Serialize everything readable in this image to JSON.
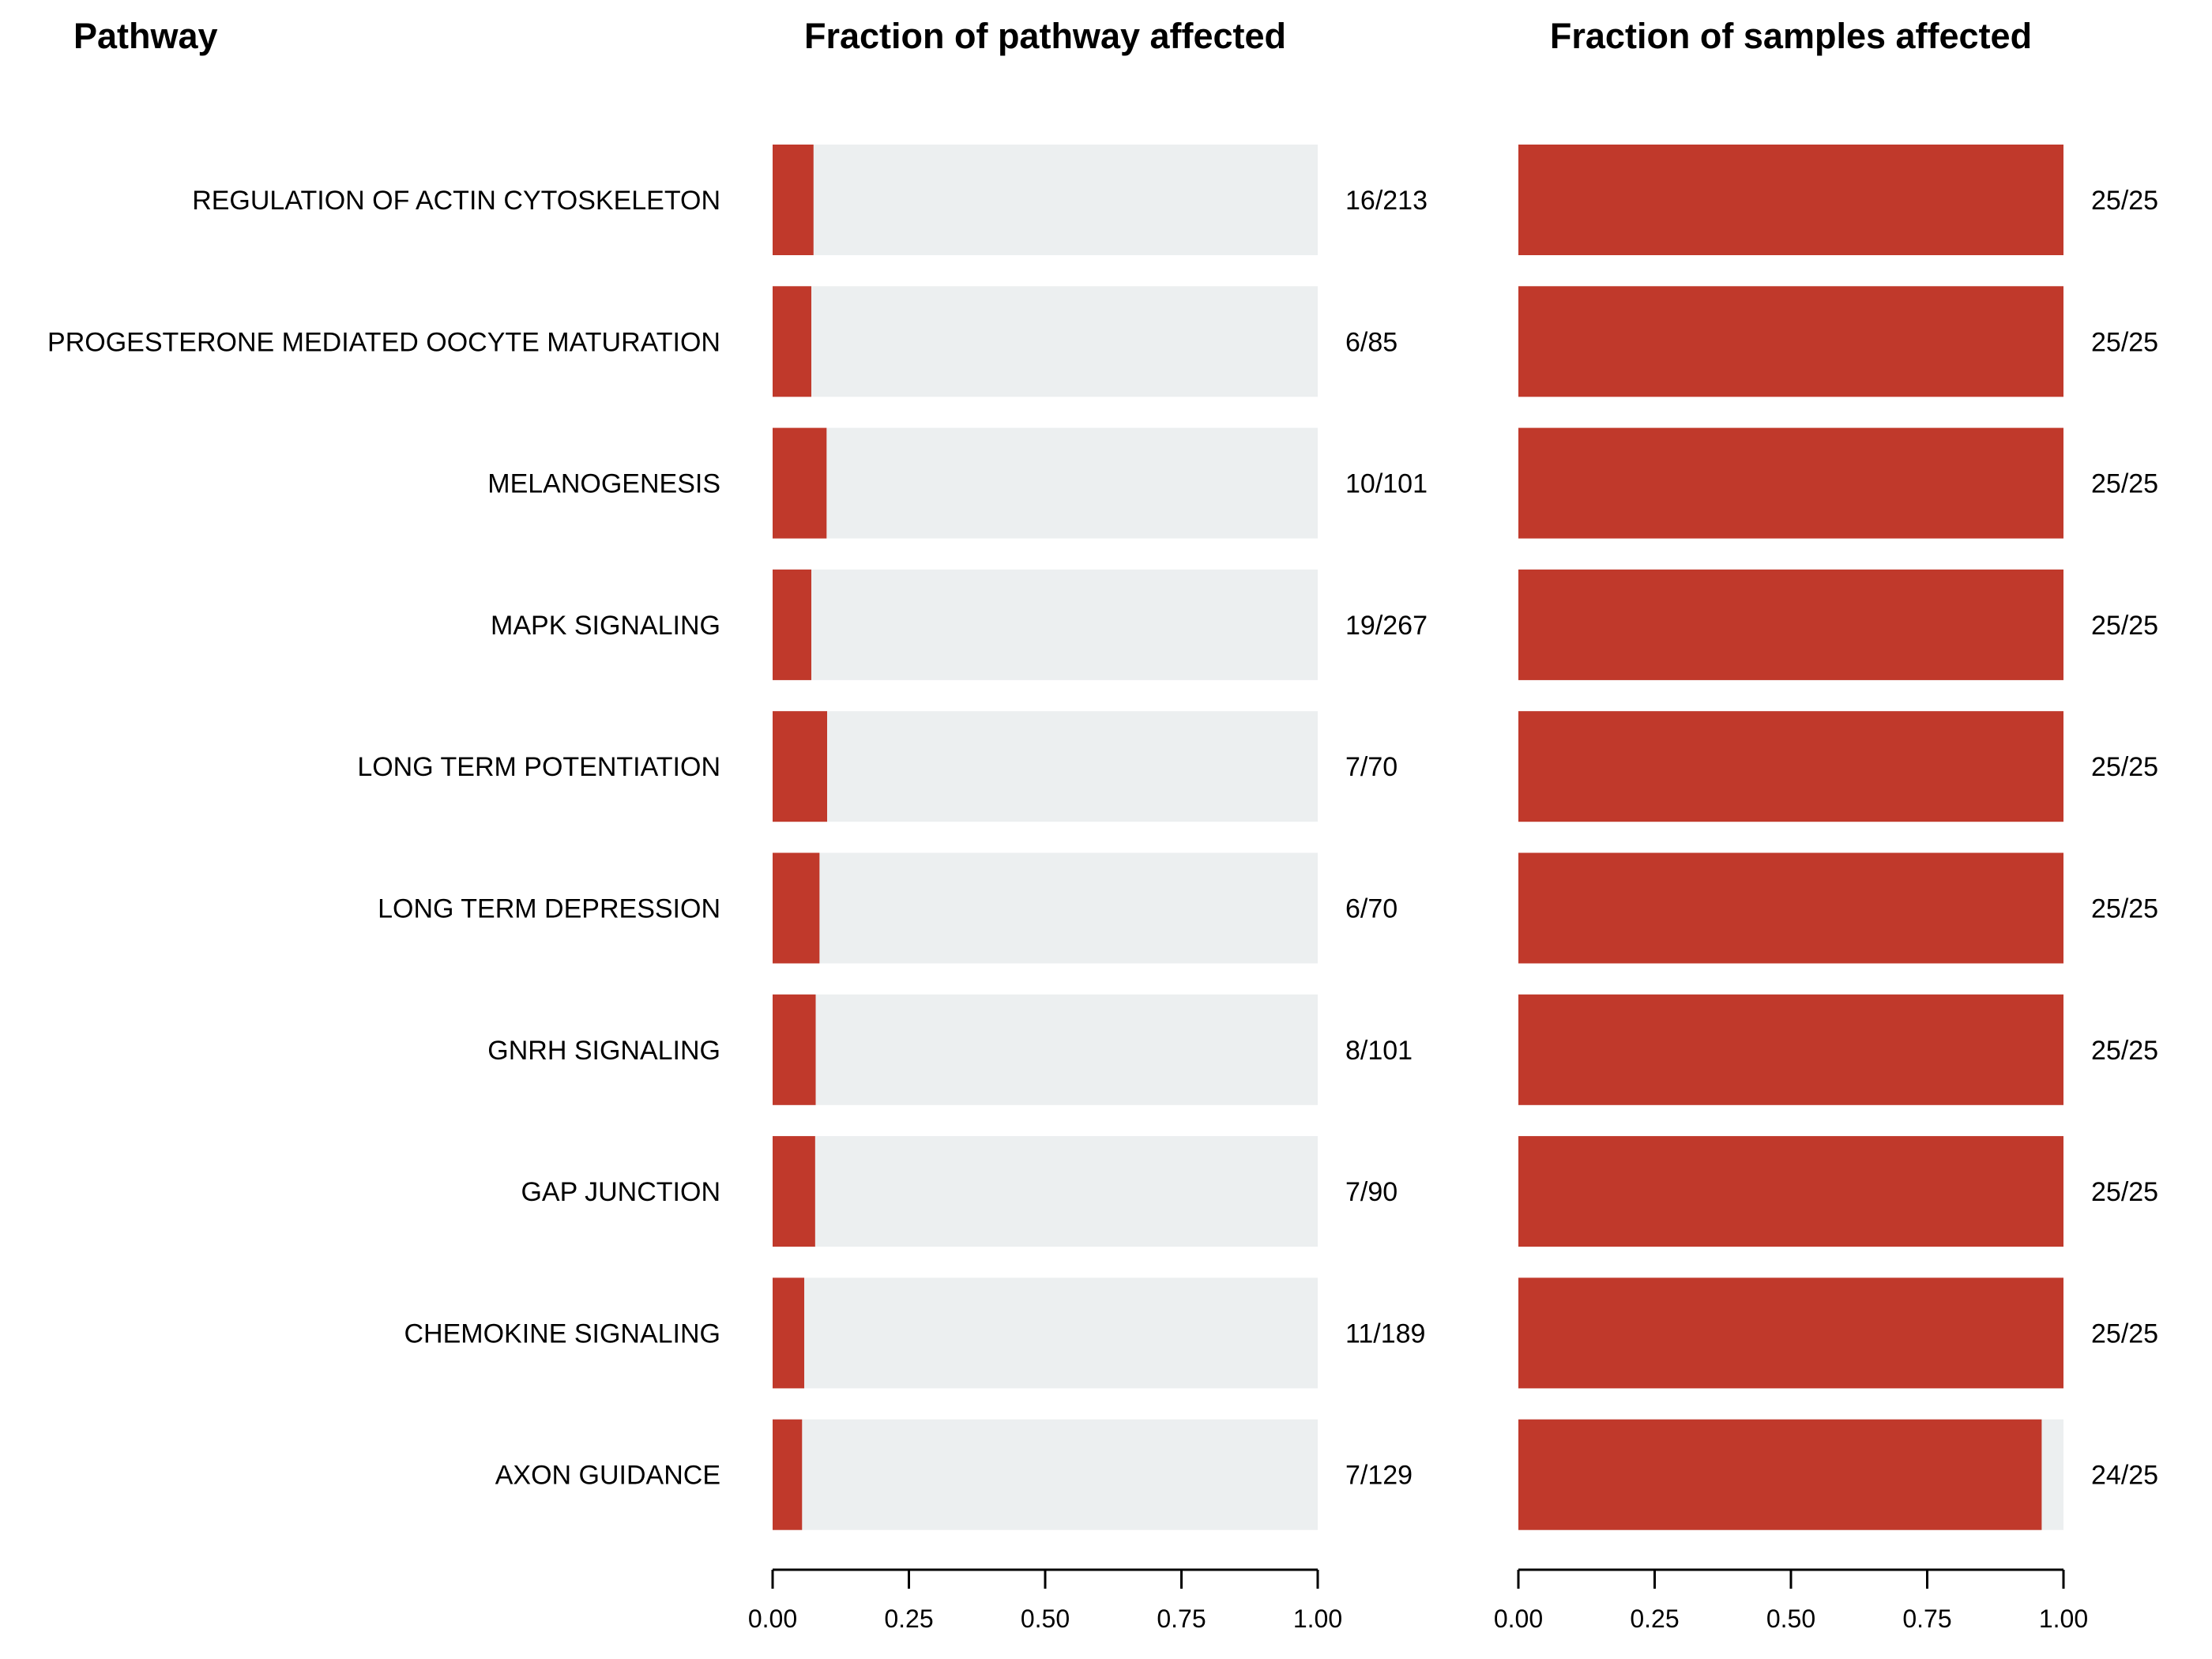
{
  "chart_data": {
    "type": "bar",
    "layout": "two-panel horizontal stacked bar (affected fraction over full background bar)",
    "column_header": "Pathway",
    "colors": {
      "affected": "#c0392b",
      "background": "#eceff0"
    },
    "categories": [
      "REGULATION OF ACTIN CYTOSKELETON",
      "PROGESTERONE MEDIATED OOCYTE MATURATION",
      "MELANOGENESIS",
      "MAPK SIGNALING",
      "LONG TERM POTENTIATION",
      "LONG TERM DEPRESSION",
      "GNRH SIGNALING",
      "GAP JUNCTION",
      "CHEMOKINE SIGNALING",
      "AXON GUIDANCE"
    ],
    "panels": [
      {
        "title": "Fraction of pathway affected",
        "xlim": [
          0,
          1
        ],
        "ticks": [
          "0.00",
          "0.25",
          "0.50",
          "0.75",
          "1.00"
        ],
        "values": [
          0.075,
          0.071,
          0.099,
          0.071,
          0.1,
          0.086,
          0.079,
          0.078,
          0.058,
          0.054
        ],
        "labels": [
          "16/213",
          "6/85",
          "10/101",
          "19/267",
          "7/70",
          "6/70",
          "8/101",
          "7/90",
          "11/189",
          "7/129"
        ]
      },
      {
        "title": "Fraction of samples affected",
        "xlim": [
          0,
          1
        ],
        "ticks": [
          "0.00",
          "0.25",
          "0.50",
          "0.75",
          "1.00"
        ],
        "values": [
          1,
          1,
          1,
          1,
          1,
          1,
          1,
          1,
          1,
          0.96
        ],
        "labels": [
          "25/25",
          "25/25",
          "25/25",
          "25/25",
          "25/25",
          "25/25",
          "25/25",
          "25/25",
          "25/25",
          "24/25"
        ]
      }
    ]
  }
}
